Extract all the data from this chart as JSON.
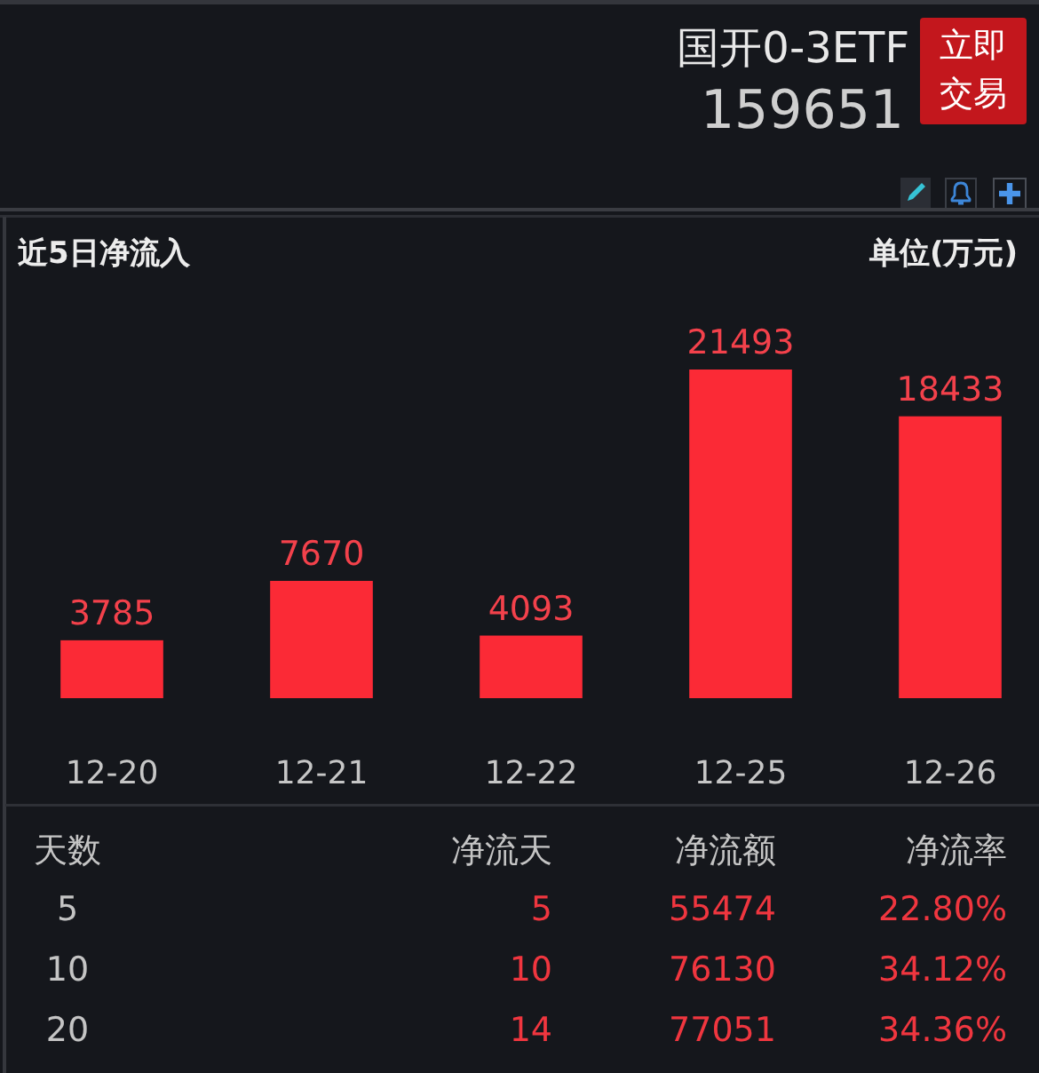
{
  "chart_data": {
    "type": "bar",
    "title": "近5日净流入",
    "subtitle": "单位(万元)",
    "categories": [
      "12-20",
      "12-21",
      "12-22",
      "12-25",
      "12-26"
    ],
    "values": [
      3785,
      7670,
      4093,
      21493,
      18433
    ],
    "color": "#fb2a36",
    "data_labels": true,
    "annotations": [
      "国开0-3ETF",
      "159651",
      "立即交易",
      "天数",
      "净流天",
      "净流额",
      "净流率",
      "5",
      "5",
      "55474",
      "22.80%",
      "10",
      "10",
      "76130",
      "34.12%",
      "20",
      "14",
      "77051",
      "34.36%"
    ]
  }
}
